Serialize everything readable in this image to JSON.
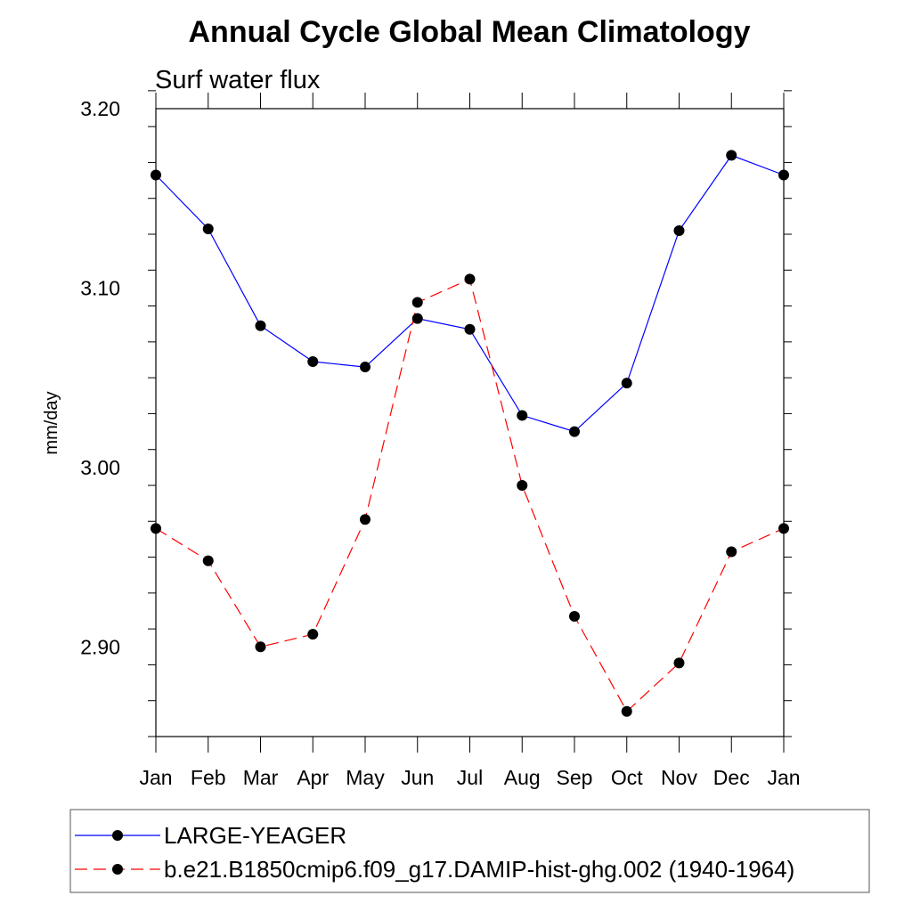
{
  "chart_data": {
    "type": "line",
    "title": "Annual Cycle Global Mean Climatology",
    "subtitle": "Surf water flux",
    "xlabel": "",
    "ylabel": "mm/day",
    "categories": [
      "Jan",
      "Feb",
      "Mar",
      "Apr",
      "May",
      "Jun",
      "Jul",
      "Aug",
      "Sep",
      "Oct",
      "Nov",
      "Dec",
      "Jan"
    ],
    "ylim": [
      2.85,
      3.2
    ],
    "y_ticks": [
      2.9,
      3.0,
      3.1,
      3.2
    ],
    "y_tick_labels": [
      "2.90",
      "3.00",
      "3.10",
      "3.20"
    ],
    "grid": false,
    "legend_position": "bottom",
    "series": [
      {
        "name": "LARGE-YEAGER",
        "color": "#0000ff",
        "line_style": "solid",
        "marker": "filled-circle",
        "values": [
          3.163,
          3.133,
          3.079,
          3.059,
          3.056,
          3.083,
          3.077,
          3.029,
          3.02,
          3.047,
          3.132,
          3.174,
          3.163
        ]
      },
      {
        "name": "b.e21.B1850cmip6.f09_g17.DAMIP-hist-ghg.002 (1940-1964)",
        "color": "#ff0000",
        "line_style": "dashed",
        "marker": "filled-circle",
        "values": [
          2.966,
          2.948,
          2.9,
          2.907,
          2.971,
          3.092,
          3.105,
          2.99,
          2.917,
          2.864,
          2.891,
          2.953,
          2.966
        ]
      }
    ]
  }
}
